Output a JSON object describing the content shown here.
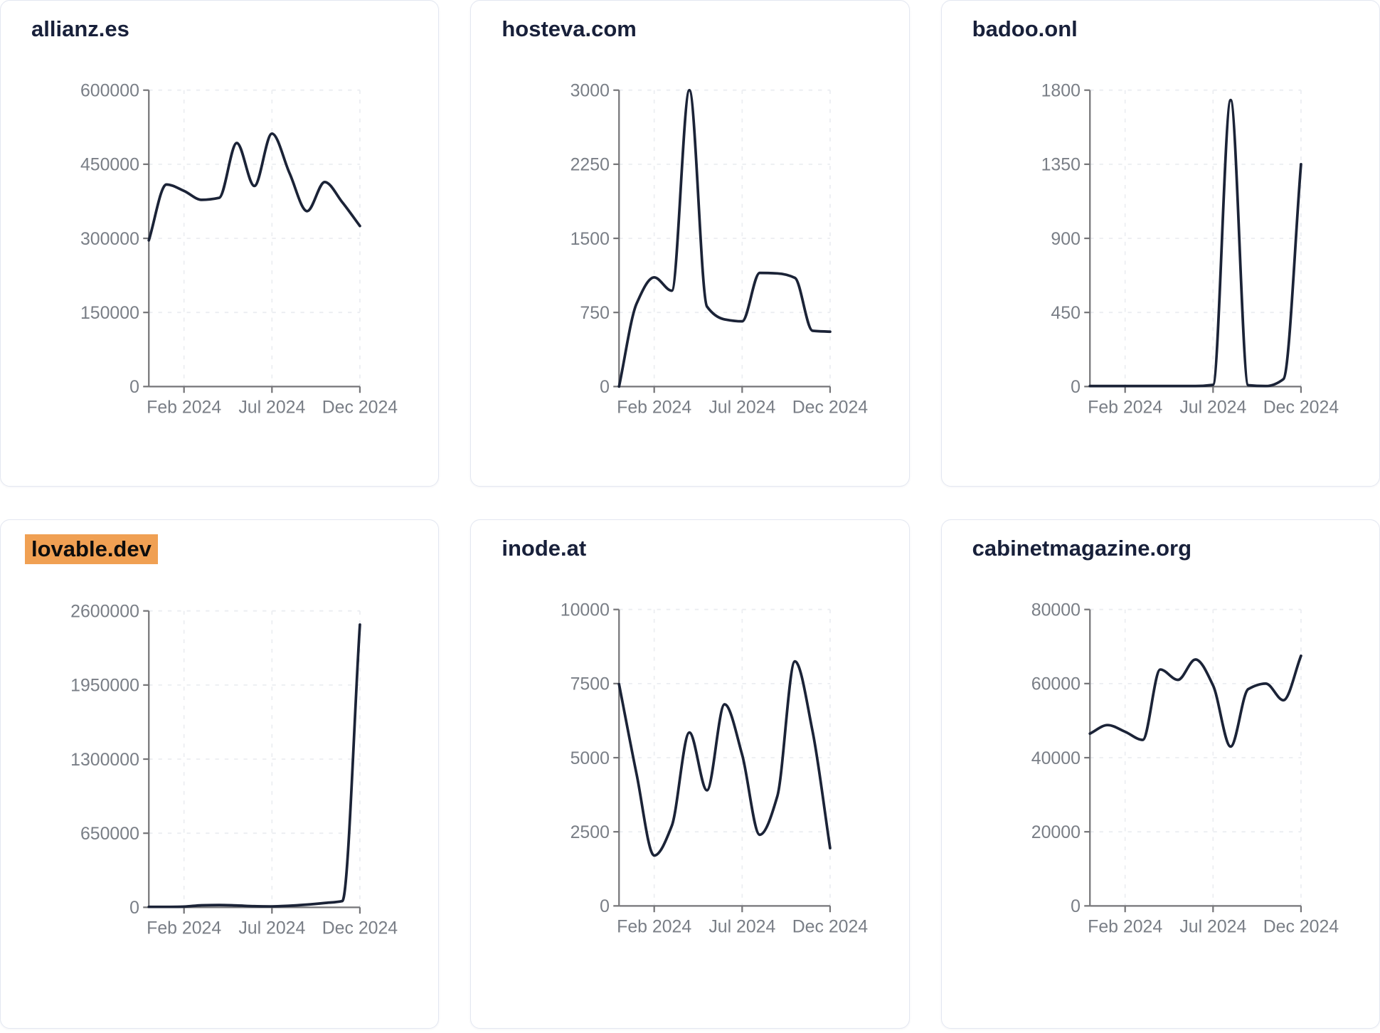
{
  "page": {
    "background": "#ffffff",
    "card_background": "#ffffff",
    "card_border_color": "#e3e7f1"
  },
  "style": {
    "line_color": "#1b2337",
    "title_color": "#18203a",
    "highlight_color": "#f0a053",
    "axis_color": "#757578",
    "tick_label_color": "#797e86",
    "gridline_color": "#ebedf1"
  },
  "chart_data": [
    {
      "title": "allianz.es",
      "highlighted": false,
      "type": "line",
      "x": [
        "Dec 2023",
        "Jan 2024",
        "Feb 2024",
        "Mar 2024",
        "Apr 2024",
        "May 2024",
        "Jun 2024",
        "Jul 2024",
        "Aug 2024",
        "Sep 2024",
        "Oct 2024",
        "Nov 2024",
        "Dec 2024"
      ],
      "values": [
        296000,
        409000,
        396000,
        378000,
        382000,
        493000,
        406000,
        512000,
        432000,
        355000,
        414000,
        373000,
        325000
      ],
      "y_ticks": [
        0,
        150000,
        300000,
        450000,
        600000
      ],
      "ylim": [
        0,
        600000
      ],
      "x_tick_labels": [
        "Feb 2024",
        "Jul 2024",
        "Dec 2024"
      ],
      "x_tick_indices": [
        2,
        7,
        12
      ],
      "grid": true,
      "legend": "none"
    },
    {
      "title": "hosteva.com",
      "highlighted": false,
      "type": "line",
      "x": [
        "Dec 2023",
        "Jan 2024",
        "Feb 2024",
        "Mar 2024",
        "Apr 2024",
        "May 2024",
        "Jun 2024",
        "Jul 2024",
        "Aug 2024",
        "Sep 2024",
        "Oct 2024",
        "Nov 2024",
        "Dec 2024"
      ],
      "values": [
        0,
        840,
        1105,
        970,
        3000,
        810,
        680,
        660,
        1150,
        1145,
        1100,
        565,
        555
      ],
      "y_ticks": [
        0,
        750,
        1500,
        2250,
        3000
      ],
      "ylim": [
        0,
        3000
      ],
      "x_tick_labels": [
        "Feb 2024",
        "Jul 2024",
        "Dec 2024"
      ],
      "x_tick_indices": [
        2,
        7,
        12
      ],
      "grid": true,
      "legend": "none"
    },
    {
      "title": "badoo.onl",
      "highlighted": false,
      "type": "line",
      "x": [
        "Dec 2023",
        "Jan 2024",
        "Feb 2024",
        "Mar 2024",
        "Apr 2024",
        "May 2024",
        "Jun 2024",
        "Jul 2024",
        "Aug 2024",
        "Sep 2024",
        "Oct 2024",
        "Nov 2024",
        "Dec 2024"
      ],
      "values": [
        3,
        3,
        3,
        3,
        3,
        3,
        3,
        10,
        1740,
        8,
        3,
        45,
        1350
      ],
      "y_ticks": [
        0,
        450,
        900,
        1350,
        1800
      ],
      "ylim": [
        0,
        1800
      ],
      "x_tick_labels": [
        "Feb 2024",
        "Jul 2024",
        "Dec 2024"
      ],
      "x_tick_indices": [
        2,
        7,
        12
      ],
      "grid": true,
      "legend": "none"
    },
    {
      "title": "lovable.dev",
      "highlighted": true,
      "type": "line",
      "x": [
        "Dec 2023",
        "Jan 2024",
        "Feb 2024",
        "Mar 2024",
        "Apr 2024",
        "May 2024",
        "Jun 2024",
        "Jul 2024",
        "Aug 2024",
        "Sep 2024",
        "Oct 2024",
        "Nov 2024",
        "Dec 2024"
      ],
      "values": [
        4000,
        4000,
        6000,
        18000,
        20000,
        16000,
        10000,
        8000,
        14000,
        24000,
        38000,
        55000,
        2480000
      ],
      "y_ticks": [
        0,
        650000,
        1300000,
        1950000,
        2600000
      ],
      "ylim": [
        0,
        2600000
      ],
      "x_tick_labels": [
        "Feb 2024",
        "Jul 2024",
        "Dec 2024"
      ],
      "x_tick_indices": [
        2,
        7,
        12
      ],
      "grid": true,
      "legend": "none"
    },
    {
      "title": "inode.at",
      "highlighted": false,
      "type": "line",
      "x": [
        "Dec 2023",
        "Jan 2024",
        "Feb 2024",
        "Mar 2024",
        "Apr 2024",
        "May 2024",
        "Jun 2024",
        "Jul 2024",
        "Aug 2024",
        "Sep 2024",
        "Oct 2024",
        "Nov 2024",
        "Dec 2024"
      ],
      "values": [
        7480,
        4440,
        1700,
        2700,
        5850,
        3900,
        6800,
        5100,
        2400,
        3700,
        8250,
        5900,
        1950
      ],
      "y_ticks": [
        0,
        2500,
        5000,
        7500,
        10000
      ],
      "ylim": [
        0,
        10000
      ],
      "x_tick_labels": [
        "Feb 2024",
        "Jul 2024",
        "Dec 2024"
      ],
      "x_tick_indices": [
        2,
        7,
        12
      ],
      "grid": true,
      "legend": "none"
    },
    {
      "title": "cabinetmagazine.org",
      "highlighted": false,
      "type": "line",
      "x": [
        "Dec 2023",
        "Jan 2024",
        "Feb 2024",
        "Mar 2024",
        "Apr 2024",
        "May 2024",
        "Jun 2024",
        "Jul 2024",
        "Aug 2024",
        "Sep 2024",
        "Oct 2024",
        "Nov 2024",
        "Dec 2024"
      ],
      "values": [
        46500,
        48800,
        47000,
        44800,
        63800,
        61000,
        66500,
        59500,
        43000,
        58500,
        60000,
        55500,
        67500
      ],
      "y_ticks": [
        0,
        20000,
        40000,
        60000,
        80000
      ],
      "ylim": [
        0,
        80000
      ],
      "x_tick_labels": [
        "Feb 2024",
        "Jul 2024",
        "Dec 2024"
      ],
      "x_tick_indices": [
        2,
        7,
        12
      ],
      "grid": true,
      "legend": "none"
    }
  ]
}
